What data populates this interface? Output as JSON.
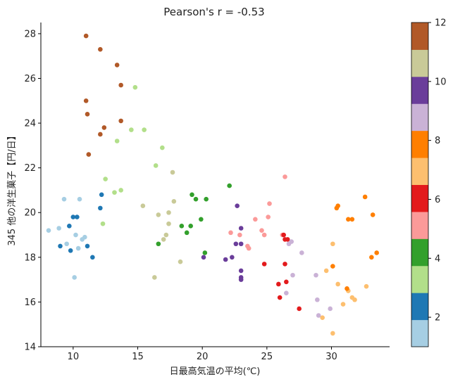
{
  "chart_data": {
    "type": "scatter",
    "title": "Pearson's r = -0.53",
    "xlabel": "日最高気温の平均(℃)",
    "ylabel": "345 他の洋生菓子【円/日】",
    "xlim": [
      7.5,
      34.5
    ],
    "ylim": [
      14,
      28.5
    ],
    "xticks": [
      "10",
      "15",
      "20",
      "25",
      "30"
    ],
    "yticks": [
      "14",
      "16",
      "18",
      "20",
      "22",
      "24",
      "26",
      "28"
    ],
    "colorbar": {
      "range": [
        1,
        12
      ],
      "ticks": [
        "2",
        "4",
        "6",
        "8",
        "10",
        "12"
      ],
      "colors": [
        "#a6cee3",
        "#1f78b4",
        "#b2df8a",
        "#33a02c",
        "#fb9a99",
        "#e31a1c",
        "#fdbf6f",
        "#ff7f00",
        "#cab2d6",
        "#6a3d9a",
        "#c9ca98",
        "#b15928"
      ]
    },
    "grid": false,
    "points": [
      {
        "x": 8.1,
        "y": 19.2,
        "m": 1
      },
      {
        "x": 8.9,
        "y": 19.3,
        "m": 1
      },
      {
        "x": 9.3,
        "y": 20.6,
        "m": 1
      },
      {
        "x": 9.5,
        "y": 18.6,
        "m": 1
      },
      {
        "x": 10.1,
        "y": 17.1,
        "m": 1
      },
      {
        "x": 10.2,
        "y": 19.0,
        "m": 1
      },
      {
        "x": 10.4,
        "y": 18.4,
        "m": 1
      },
      {
        "x": 10.5,
        "y": 20.6,
        "m": 1
      },
      {
        "x": 10.7,
        "y": 18.8,
        "m": 1
      },
      {
        "x": 10.9,
        "y": 18.9,
        "m": 1
      },
      {
        "x": 9.0,
        "y": 18.5,
        "m": 2
      },
      {
        "x": 9.7,
        "y": 19.4,
        "m": 2
      },
      {
        "x": 9.8,
        "y": 18.3,
        "m": 2
      },
      {
        "x": 10.0,
        "y": 19.8,
        "m": 2
      },
      {
        "x": 10.3,
        "y": 19.8,
        "m": 2
      },
      {
        "x": 11.1,
        "y": 18.5,
        "m": 2
      },
      {
        "x": 11.5,
        "y": 18.0,
        "m": 2
      },
      {
        "x": 12.1,
        "y": 20.2,
        "m": 2
      },
      {
        "x": 12.2,
        "y": 20.8,
        "m": 2
      },
      {
        "x": 12.3,
        "y": 19.5,
        "m": 3
      },
      {
        "x": 12.5,
        "y": 21.5,
        "m": 3
      },
      {
        "x": 13.2,
        "y": 20.9,
        "m": 3
      },
      {
        "x": 13.4,
        "y": 23.2,
        "m": 3
      },
      {
        "x": 13.7,
        "y": 21.0,
        "m": 3
      },
      {
        "x": 14.5,
        "y": 23.7,
        "m": 3
      },
      {
        "x": 14.8,
        "y": 25.6,
        "m": 3
      },
      {
        "x": 15.5,
        "y": 23.7,
        "m": 3
      },
      {
        "x": 16.4,
        "y": 22.1,
        "m": 3
      },
      {
        "x": 16.9,
        "y": 22.9,
        "m": 3
      },
      {
        "x": 16.6,
        "y": 18.6,
        "m": 4
      },
      {
        "x": 18.4,
        "y": 19.4,
        "m": 4
      },
      {
        "x": 18.8,
        "y": 19.1,
        "m": 4
      },
      {
        "x": 19.1,
        "y": 19.4,
        "m": 4
      },
      {
        "x": 19.2,
        "y": 20.8,
        "m": 4
      },
      {
        "x": 19.5,
        "y": 20.6,
        "m": 4
      },
      {
        "x": 19.9,
        "y": 19.7,
        "m": 4
      },
      {
        "x": 20.2,
        "y": 18.2,
        "m": 4
      },
      {
        "x": 20.3,
        "y": 20.6,
        "m": 4
      },
      {
        "x": 22.1,
        "y": 21.2,
        "m": 4
      },
      {
        "x": 22.2,
        "y": 19.1,
        "m": 5
      },
      {
        "x": 22.9,
        "y": 19.0,
        "m": 5
      },
      {
        "x": 23.5,
        "y": 18.5,
        "m": 5
      },
      {
        "x": 23.6,
        "y": 18.4,
        "m": 5
      },
      {
        "x": 24.1,
        "y": 19.7,
        "m": 5
      },
      {
        "x": 24.6,
        "y": 19.2,
        "m": 5
      },
      {
        "x": 24.8,
        "y": 19.0,
        "m": 5
      },
      {
        "x": 25.1,
        "y": 19.8,
        "m": 5
      },
      {
        "x": 25.2,
        "y": 20.4,
        "m": 5
      },
      {
        "x": 26.2,
        "y": 19.0,
        "m": 5
      },
      {
        "x": 26.4,
        "y": 21.6,
        "m": 5
      },
      {
        "x": 24.8,
        "y": 17.7,
        "m": 6
      },
      {
        "x": 25.9,
        "y": 16.8,
        "m": 6
      },
      {
        "x": 26.0,
        "y": 16.2,
        "m": 6
      },
      {
        "x": 26.3,
        "y": 19.0,
        "m": 6
      },
      {
        "x": 26.4,
        "y": 17.7,
        "m": 6
      },
      {
        "x": 26.4,
        "y": 18.8,
        "m": 6
      },
      {
        "x": 26.5,
        "y": 16.9,
        "m": 6
      },
      {
        "x": 26.6,
        "y": 18.8,
        "m": 6
      },
      {
        "x": 27.5,
        "y": 15.7,
        "m": 6
      },
      {
        "x": 29.3,
        "y": 15.3,
        "m": 7
      },
      {
        "x": 29.6,
        "y": 17.4,
        "m": 7
      },
      {
        "x": 30.1,
        "y": 18.6,
        "m": 7
      },
      {
        "x": 30.1,
        "y": 14.6,
        "m": 7
      },
      {
        "x": 30.5,
        "y": 16.8,
        "m": 7
      },
      {
        "x": 30.9,
        "y": 15.9,
        "m": 7
      },
      {
        "x": 31.3,
        "y": 16.5,
        "m": 7
      },
      {
        "x": 31.6,
        "y": 16.2,
        "m": 7
      },
      {
        "x": 31.8,
        "y": 16.1,
        "m": 7
      },
      {
        "x": 32.7,
        "y": 16.7,
        "m": 7
      },
      {
        "x": 30.1,
        "y": 17.6,
        "m": 8
      },
      {
        "x": 30.4,
        "y": 20.2,
        "m": 8
      },
      {
        "x": 30.5,
        "y": 20.3,
        "m": 8
      },
      {
        "x": 31.2,
        "y": 16.6,
        "m": 8
      },
      {
        "x": 31.3,
        "y": 19.7,
        "m": 8
      },
      {
        "x": 31.6,
        "y": 19.7,
        "m": 8
      },
      {
        "x": 32.6,
        "y": 20.7,
        "m": 8
      },
      {
        "x": 33.1,
        "y": 18.0,
        "m": 8
      },
      {
        "x": 33.2,
        "y": 19.9,
        "m": 8
      },
      {
        "x": 33.5,
        "y": 18.2,
        "m": 8
      },
      {
        "x": 26.5,
        "y": 16.4,
        "m": 9
      },
      {
        "x": 26.7,
        "y": 18.6,
        "m": 9
      },
      {
        "x": 26.9,
        "y": 18.7,
        "m": 9
      },
      {
        "x": 27.0,
        "y": 17.2,
        "m": 9
      },
      {
        "x": 27.7,
        "y": 18.2,
        "m": 9
      },
      {
        "x": 28.8,
        "y": 17.2,
        "m": 9
      },
      {
        "x": 28.9,
        "y": 16.1,
        "m": 9
      },
      {
        "x": 29.0,
        "y": 15.4,
        "m": 9
      },
      {
        "x": 29.9,
        "y": 15.7,
        "m": 9
      },
      {
        "x": 20.1,
        "y": 18.0,
        "m": 10
      },
      {
        "x": 21.8,
        "y": 17.9,
        "m": 10
      },
      {
        "x": 22.3,
        "y": 18.0,
        "m": 10
      },
      {
        "x": 22.6,
        "y": 18.6,
        "m": 10
      },
      {
        "x": 22.7,
        "y": 20.3,
        "m": 10
      },
      {
        "x": 23.0,
        "y": 17.4,
        "m": 10
      },
      {
        "x": 23.0,
        "y": 17.1,
        "m": 10
      },
      {
        "x": 23.0,
        "y": 17.0,
        "m": 10
      },
      {
        "x": 23.0,
        "y": 18.6,
        "m": 10
      },
      {
        "x": 23.0,
        "y": 19.3,
        "m": 10
      },
      {
        "x": 15.4,
        "y": 20.3,
        "m": 11
      },
      {
        "x": 16.3,
        "y": 17.1,
        "m": 11
      },
      {
        "x": 16.6,
        "y": 19.9,
        "m": 11
      },
      {
        "x": 17.0,
        "y": 18.8,
        "m": 11
      },
      {
        "x": 17.2,
        "y": 19.0,
        "m": 11
      },
      {
        "x": 17.4,
        "y": 20.0,
        "m": 11
      },
      {
        "x": 17.4,
        "y": 19.5,
        "m": 11
      },
      {
        "x": 17.7,
        "y": 21.8,
        "m": 11
      },
      {
        "x": 17.8,
        "y": 20.5,
        "m": 11
      },
      {
        "x": 18.3,
        "y": 17.8,
        "m": 11
      },
      {
        "x": 11.0,
        "y": 27.9,
        "m": 12
      },
      {
        "x": 11.0,
        "y": 25.0,
        "m": 12
      },
      {
        "x": 11.1,
        "y": 24.4,
        "m": 12
      },
      {
        "x": 11.2,
        "y": 22.6,
        "m": 12
      },
      {
        "x": 12.1,
        "y": 27.3,
        "m": 12
      },
      {
        "x": 12.1,
        "y": 23.5,
        "m": 12
      },
      {
        "x": 12.4,
        "y": 23.8,
        "m": 12
      },
      {
        "x": 13.4,
        "y": 26.6,
        "m": 12
      },
      {
        "x": 13.7,
        "y": 25.7,
        "m": 12
      },
      {
        "x": 13.7,
        "y": 24.1,
        "m": 12
      }
    ]
  }
}
